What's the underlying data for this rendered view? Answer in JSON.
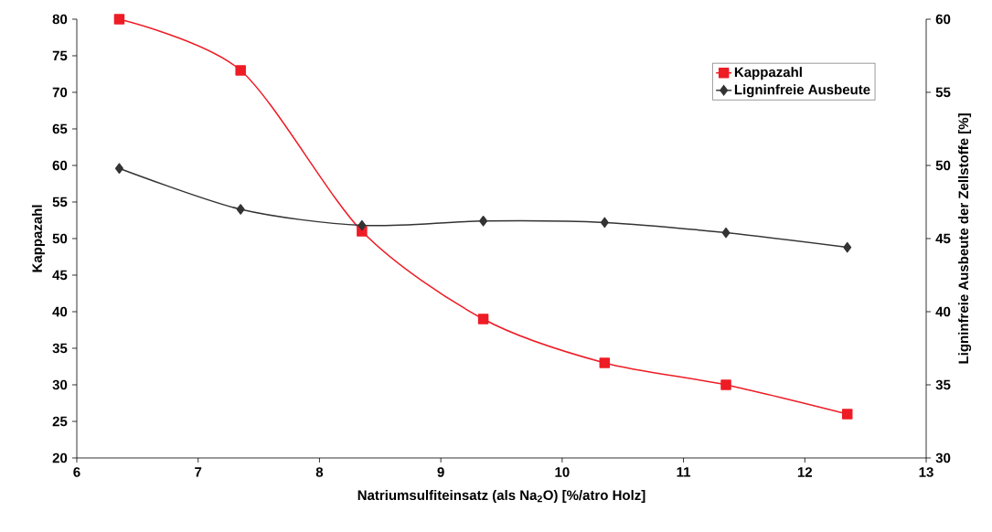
{
  "chart_data": {
    "type": "line",
    "xlabel": "Natriumsulfiteinsatz (als Na$_{2}$O) [%/atro Holz]",
    "ylabel": "Kappazahl",
    "y2label": "Ligninfreie Ausbeute der Zellstoffe [%]",
    "x": [
      6.35,
      7.35,
      8.35,
      9.35,
      10.35,
      11.35,
      12.35
    ],
    "series": [
      {
        "name": "Kappazahl",
        "color": "#ee1c25",
        "marker": "square",
        "values": [
          80,
          73,
          51,
          39,
          33,
          30,
          26
        ]
      },
      {
        "name": "Ligninfreie Ausbeute",
        "color": "#333333",
        "marker": "diamond",
        "axis": "y2",
        "values": [
          49.8,
          47.0,
          45.9,
          46.2,
          46.1,
          45.4,
          44.4
        ]
      }
    ],
    "xlim": [
      6,
      13
    ],
    "xticks": [
      6,
      7,
      8,
      9,
      10,
      11,
      12,
      13
    ],
    "ylim": [
      20,
      80
    ],
    "yticks": [
      20,
      25,
      30,
      35,
      40,
      45,
      50,
      55,
      60,
      65,
      70,
      75,
      80
    ],
    "y2lim": [
      30,
      60
    ],
    "y2ticks": [
      30,
      35,
      40,
      45,
      50,
      55,
      60
    ],
    "legend": "top right",
    "grid": false
  }
}
